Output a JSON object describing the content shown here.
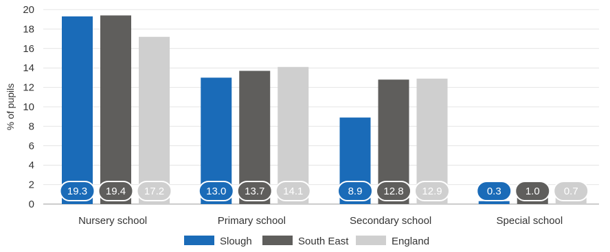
{
  "chart_data": {
    "type": "bar",
    "ylabel": "% of pupils",
    "xlabel": "",
    "ylim": [
      0,
      20
    ],
    "yticks": [
      0,
      2,
      4,
      6,
      8,
      10,
      12,
      14,
      16,
      18,
      20
    ],
    "grid": true,
    "legend_position": "bottom",
    "categories": [
      "Nursery school",
      "Primary school",
      "Secondary school",
      "Special school"
    ],
    "series": [
      {
        "name": "Slough",
        "color": "#1a6bb8",
        "values": [
          19.3,
          13.0,
          8.9,
          0.3
        ],
        "labels": [
          "19.3",
          "13.0",
          "8.9",
          "0.3"
        ]
      },
      {
        "name": "South East",
        "color": "#5f5e5c",
        "values": [
          19.4,
          13.7,
          12.8,
          1.0
        ],
        "labels": [
          "19.4",
          "13.7",
          "12.8",
          "1.0"
        ]
      },
      {
        "name": "England",
        "color": "#cfcfcf",
        "values": [
          17.2,
          14.1,
          12.9,
          0.7
        ],
        "labels": [
          "17.2",
          "14.1",
          "12.9",
          "0.7"
        ]
      }
    ]
  }
}
